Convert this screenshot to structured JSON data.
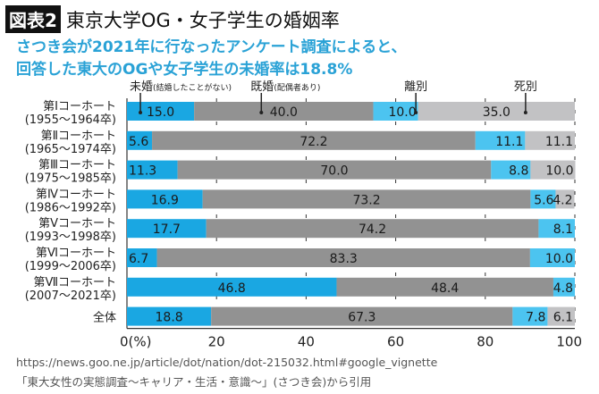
{
  "header": {
    "figure_label": "図表2",
    "title": "東京大学OG・女子学生の婚姻率",
    "subtitle_line1": "さつき会が2021年に行なったアンケート調査によると、",
    "subtitle_line2": "回答した東大のOGや女子学生の未婚率は18.8%"
  },
  "source": {
    "url": "https://news.goo.ne.jp/article/dot/nation/dot-215032.html#google_vignette",
    "citation": "「東大女性の実態調査〜キャリア・生活・意識〜」(さつき会)から引用"
  },
  "chart_data": {
    "type": "bar",
    "orientation": "horizontal",
    "stacked": true,
    "xlim": [
      0,
      100
    ],
    "xticks": [
      "0(%)",
      "20",
      "40",
      "60",
      "80",
      "100"
    ],
    "grid": "vertical dashed",
    "categories": [
      [
        "第Ⅰコーホート",
        "(1955〜1964卒)"
      ],
      [
        "第Ⅱコーホート",
        "(1965〜1974卒)"
      ],
      [
        "第Ⅲコーホート",
        "(1975〜1985卒)"
      ],
      [
        "第Ⅳコーホート",
        "(1986〜1992卒)"
      ],
      [
        "第Ⅴコーホート",
        "(1993〜1998卒)"
      ],
      [
        "第Ⅵコーホート",
        "(1999〜2006卒)"
      ],
      [
        "第Ⅶコーホート",
        "(2007〜2021卒)"
      ],
      [
        "全体",
        ""
      ]
    ],
    "series": [
      {
        "name": "未婚",
        "note": "(結婚したことがない)",
        "color": "#1aa7e2",
        "values": [
          15.0,
          5.6,
          11.3,
          16.9,
          17.7,
          6.7,
          46.8,
          18.8
        ]
      },
      {
        "name": "既婚",
        "note": "(配偶者あり)",
        "color": "#929292",
        "values": [
          40.0,
          72.2,
          70.0,
          73.2,
          74.2,
          83.3,
          48.4,
          67.3
        ]
      },
      {
        "name": "離別",
        "note": "",
        "color": "#4cc4f0",
        "values": [
          10.0,
          11.1,
          8.8,
          5.6,
          8.1,
          10.0,
          4.8,
          7.8
        ]
      },
      {
        "name": "死別",
        "note": "",
        "color": "#c2c2c4",
        "values": [
          35.0,
          11.1,
          10.0,
          4.2,
          0,
          0,
          0,
          6.1
        ]
      }
    ],
    "legend_placement": "top, with leader lines into first bar"
  }
}
